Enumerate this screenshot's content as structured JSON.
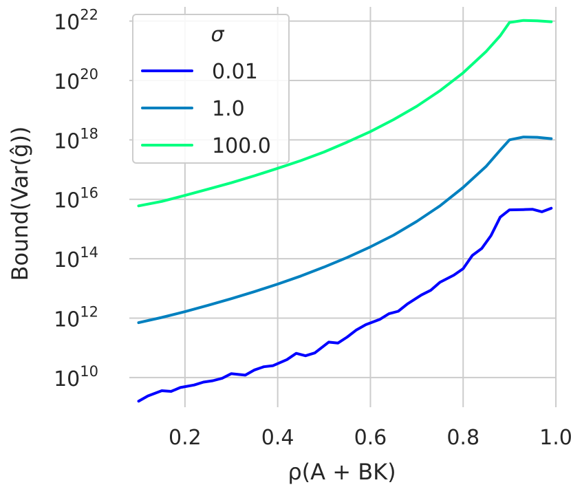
{
  "chart_data": {
    "type": "line",
    "xlabel": "ρ(A + BK)",
    "ylabel": "Bound(Var(ĝ))",
    "xlim": [
      0.08,
      1.0
    ],
    "ylim": [
      1000000000.0,
      3e+22
    ],
    "yscale": "log",
    "grid": true,
    "x_ticks": [
      {
        "value": 0.2,
        "label": "0.2"
      },
      {
        "value": 0.4,
        "label": "0.4"
      },
      {
        "value": 0.6,
        "label": "0.6"
      },
      {
        "value": 0.8,
        "label": "0.8"
      },
      {
        "value": 1.0,
        "label": "1.0"
      }
    ],
    "y_ticks": [
      {
        "value": 10000000000.0,
        "base": "10",
        "exp": "10"
      },
      {
        "value": 1000000000000.0,
        "base": "10",
        "exp": "12"
      },
      {
        "value": 100000000000000.0,
        "base": "10",
        "exp": "14"
      },
      {
        "value": 1e+16,
        "base": "10",
        "exp": "16"
      },
      {
        "value": 1e+18,
        "base": "10",
        "exp": "18"
      },
      {
        "value": 1e+20,
        "base": "10",
        "exp": "20"
      },
      {
        "value": 1e+22,
        "base": "10",
        "exp": "22"
      }
    ],
    "legend": {
      "title": "σ",
      "position": "top-left"
    },
    "series": [
      {
        "name": "0.01",
        "color": "#0000ff",
        "x": [
          0.1,
          0.12,
          0.15,
          0.17,
          0.19,
          0.22,
          0.24,
          0.26,
          0.28,
          0.3,
          0.33,
          0.35,
          0.37,
          0.39,
          0.42,
          0.44,
          0.46,
          0.48,
          0.51,
          0.53,
          0.55,
          0.57,
          0.59,
          0.62,
          0.64,
          0.66,
          0.68,
          0.71,
          0.73,
          0.75,
          0.78,
          0.8,
          0.82,
          0.84,
          0.86,
          0.88,
          0.9,
          0.93,
          0.95,
          0.97,
          0.99
        ],
        "y": [
          1600000000.0,
          2400000000.0,
          3600000000.0,
          3400000000.0,
          4600000000.0,
          5600000000.0,
          7000000000.0,
          7800000000.0,
          9400000000.0,
          13500000000.0,
          12000000000.0,
          18000000000.0,
          23000000000.0,
          25000000000.0,
          40000000000.0,
          65000000000.0,
          54000000000.0,
          67000000000.0,
          155000000000.0,
          145000000000.0,
          230000000000.0,
          400000000000.0,
          600000000000.0,
          900000000000.0,
          1400000000000.0,
          1700000000000.0,
          3000000000000.0,
          6000000000000.0,
          8600000000000.0,
          16000000000000.0,
          28000000000000.0,
          46000000000000.0,
          130000000000000.0,
          220000000000000.0,
          600000000000000.0,
          2500000000000000.0,
          4400000000000000.0,
          4500000000000000.0,
          4600000000000000.0,
          3800000000000000.0,
          5000000000000000.0
        ]
      },
      {
        "name": "1.0",
        "color": "#0080bf",
        "x": [
          0.1,
          0.15,
          0.2,
          0.25,
          0.3,
          0.35,
          0.4,
          0.45,
          0.5,
          0.55,
          0.6,
          0.65,
          0.7,
          0.75,
          0.8,
          0.85,
          0.88,
          0.9,
          0.93,
          0.96,
          0.99
        ],
        "y": [
          700000000000.0,
          1050000000000.0,
          1650000000000.0,
          2700000000000.0,
          4500000000000.0,
          7800000000000.0,
          14000000000000.0,
          26000000000000.0,
          52000000000000.0,
          110000000000000.0,
          250000000000000.0,
          620000000000000.0,
          1800000000000000.0,
          6000000000000000.0,
          2.5e+16,
          1.3e+17,
          4.5e+17,
          1e+18,
          1.25e+18,
          1.22e+18,
          1.1e+18
        ]
      },
      {
        "name": "100.0",
        "color": "#00ff80",
        "x": [
          0.1,
          0.15,
          0.2,
          0.25,
          0.3,
          0.35,
          0.4,
          0.45,
          0.5,
          0.55,
          0.6,
          0.65,
          0.7,
          0.75,
          0.8,
          0.85,
          0.88,
          0.9,
          0.93,
          0.96,
          0.99
        ],
        "y": [
          6000000000000000.0,
          8500000000000000.0,
          1.35e+16,
          2.2e+16,
          3.6e+16,
          6.2e+16,
          1.1e+17,
          2e+17,
          3.9e+17,
          8.4e+17,
          1.9e+18,
          4.8e+18,
          1.35e+19,
          4.5e+19,
          1.8e+20,
          9.6e+20,
          3.2e+21,
          9e+21,
          1.05e+22,
          1.02e+22,
          9.5e+21
        ]
      }
    ]
  }
}
